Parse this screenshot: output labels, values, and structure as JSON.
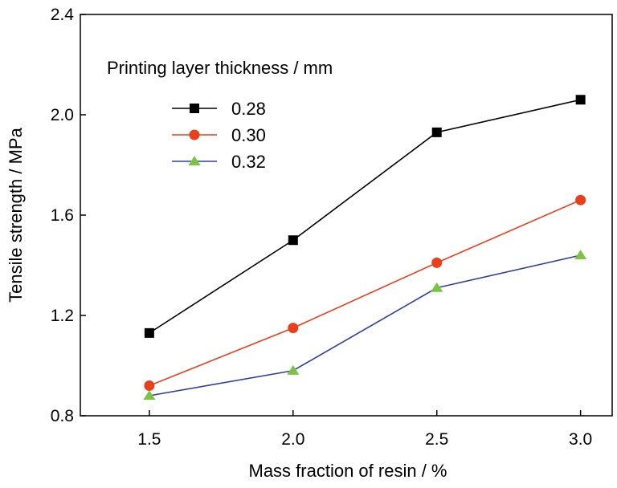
{
  "chart_data": {
    "type": "line",
    "title": "",
    "xlabel": "Mass fraction of resin / %",
    "ylabel": "Tensile strength / MPa",
    "x": [
      1.5,
      2.0,
      2.5,
      3.0
    ],
    "x_tick_labels": [
      "1.5",
      "2.0",
      "2.5",
      "3.0"
    ],
    "xlim": [
      1.26,
      3.11
    ],
    "ylim": [
      0.8,
      2.4
    ],
    "y_tick_labels": [
      "0.8",
      "1.2",
      "1.6",
      "2.0",
      "2.4"
    ],
    "legend_title": "Printing layer thickness / mm",
    "legend_position": "upper-left",
    "grid": false,
    "series": [
      {
        "name": "0.28",
        "values": [
          1.13,
          1.5,
          1.93,
          2.06
        ],
        "color": "#000000",
        "marker": "square"
      },
      {
        "name": "0.30",
        "values": [
          0.92,
          1.15,
          1.41,
          1.66
        ],
        "color": "#e8401c",
        "marker": "circle"
      },
      {
        "name": "0.32",
        "values": [
          0.88,
          0.98,
          1.31,
          1.44
        ],
        "color": "#2e3f9e",
        "marker": "triangle",
        "marker_color": "#7cc243"
      }
    ]
  }
}
